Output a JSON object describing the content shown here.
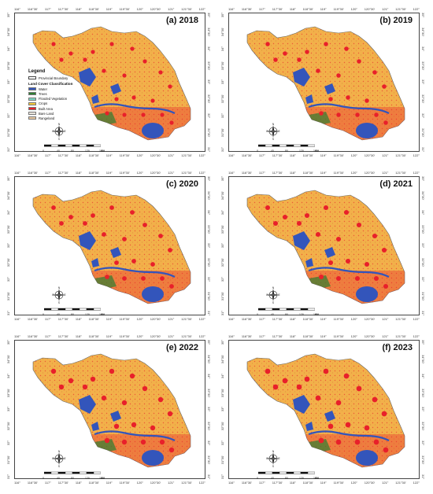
{
  "panels": [
    {
      "label": "(a) 2018"
    },
    {
      "label": "(b) 2019"
    },
    {
      "label": "(c) 2020"
    },
    {
      "label": "(d) 2021"
    },
    {
      "label": "(e) 2022"
    },
    {
      "label": "(f) 2023"
    }
  ],
  "lon_ticks": [
    "116°",
    "116°30'",
    "117°",
    "117°30'",
    "118°",
    "118°30'",
    "119°",
    "119°30'",
    "120°",
    "120°30'",
    "121°",
    "121°30'",
    "122°"
  ],
  "lat_ticks": [
    "35°",
    "34°30'",
    "34°",
    "33°30'",
    "33°",
    "32°30'",
    "32°",
    "31°30'",
    "31°"
  ],
  "legend": {
    "title": "Legend",
    "boundary_label": "Provincial Boundary",
    "classification_title": "Land Cover Classification",
    "classes": [
      {
        "name": "Water",
        "color": "#3355bb"
      },
      {
        "name": "Trees",
        "color": "#2e7d32"
      },
      {
        "name": "Flooded Vegetation",
        "color": "#7fd6c2"
      },
      {
        "name": "Crops",
        "color": "#f5c83a"
      },
      {
        "name": "Built Area",
        "color": "#e8202a"
      },
      {
        "name": "Bare Land",
        "color": "#e8e4dc"
      },
      {
        "name": "Rangeland",
        "color": "#e8c8a0"
      }
    ]
  },
  "north_arrow": {
    "n": "N",
    "s": "S",
    "e": "E",
    "w": "W"
  },
  "scale": {
    "labels": [
      "0",
      "40",
      "80",
      "120",
      "160"
    ],
    "unit": "KM"
  },
  "colors": {
    "water": "#3355bb",
    "crops": "#f2b04a",
    "built": "#e8202a",
    "trees": "#2e7d32"
  }
}
